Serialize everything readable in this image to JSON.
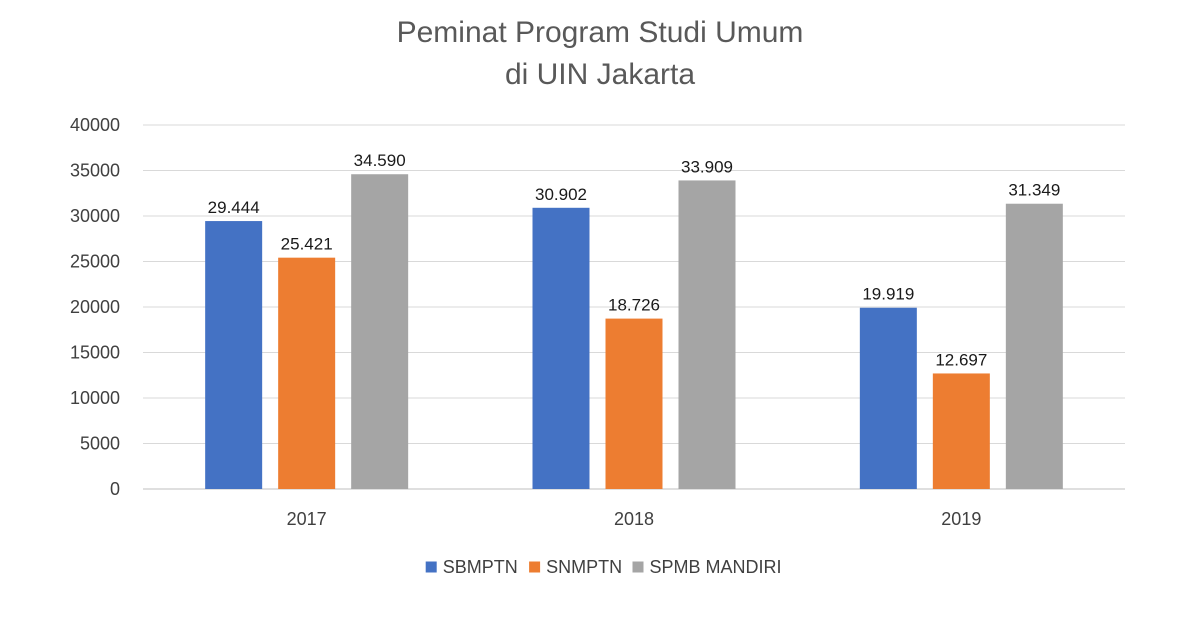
{
  "chart_data": {
    "type": "bar",
    "title_lines": [
      "Peminat Program Studi Umum",
      "di UIN Jakarta"
    ],
    "categories": [
      "2017",
      "2018",
      "2019"
    ],
    "series": [
      {
        "name": "SBMPTN",
        "color": "#4472C4",
        "values": [
          29444,
          30902,
          19919
        ],
        "labels": [
          "29.444",
          "30.902",
          "19.919"
        ]
      },
      {
        "name": "SNMPTN",
        "color": "#ED7D31",
        "values": [
          25421,
          18726,
          12697
        ],
        "labels": [
          "25.421",
          "18.726",
          "12.697"
        ]
      },
      {
        "name": "SPMB MANDIRI",
        "color": "#A5A5A5",
        "values": [
          34590,
          33909,
          31349
        ],
        "labels": [
          "34.590",
          "33.909",
          "31.349"
        ]
      }
    ],
    "ylim": [
      0,
      40000
    ],
    "yticks": [
      "0",
      "5000",
      "10000",
      "15000",
      "20000",
      "25000",
      "30000",
      "35000",
      "40000"
    ],
    "xlabel": "",
    "ylabel": "",
    "grid": true,
    "legend_position": "bottom"
  }
}
